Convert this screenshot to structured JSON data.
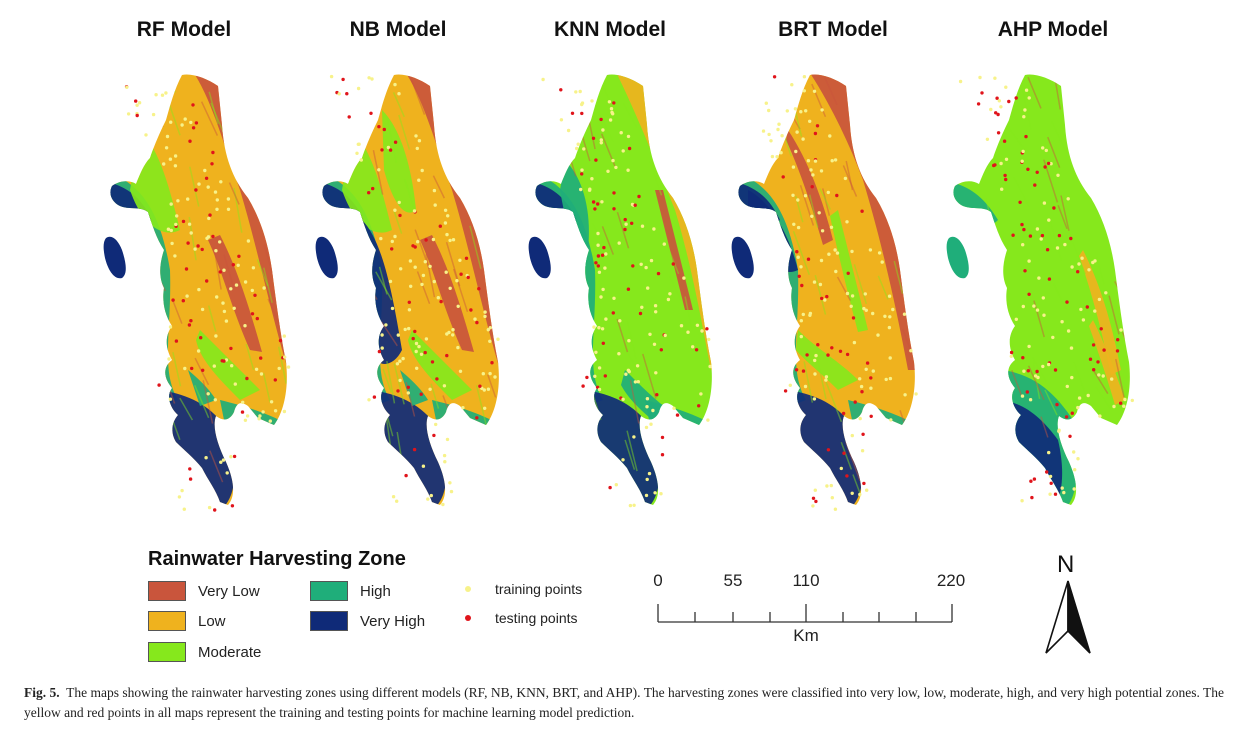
{
  "models": [
    {
      "title": "RF Model",
      "scheme": "rf"
    },
    {
      "title": "NB Model",
      "scheme": "nb"
    },
    {
      "title": "KNN Model",
      "scheme": "knn"
    },
    {
      "title": "BRT Model",
      "scheme": "brt"
    },
    {
      "title": "AHP Model",
      "scheme": "ahp"
    }
  ],
  "legend": {
    "title": "Rainwater Harvesting Zone",
    "zones": [
      {
        "label": "Very Low",
        "color": "#c9553c"
      },
      {
        "label": "Low",
        "color": "#efb21e"
      },
      {
        "label": "Moderate",
        "color": "#86e81c"
      },
      {
        "label": "High",
        "color": "#1fae7a"
      },
      {
        "label": "Very High",
        "color": "#0f2a78"
      }
    ],
    "points": [
      {
        "label": "training points",
        "color": "#f7f28a"
      },
      {
        "label": "testing points",
        "color": "#e0141b"
      }
    ]
  },
  "scale_bar": {
    "labels": [
      "0",
      "55",
      "110",
      "220"
    ],
    "unit": "Km"
  },
  "north_arrow": {
    "label": "N"
  },
  "caption": {
    "label": "Fig. 5.",
    "text": "The maps showing the rainwater harvesting zones using different models (RF, NB, KNN, BRT, and AHP). The harvesting zones were classified into very low, low, moderate, high, and very high potential zones. The yellow and red points in all maps represent the training and testing points for machine learning model prediction."
  }
}
